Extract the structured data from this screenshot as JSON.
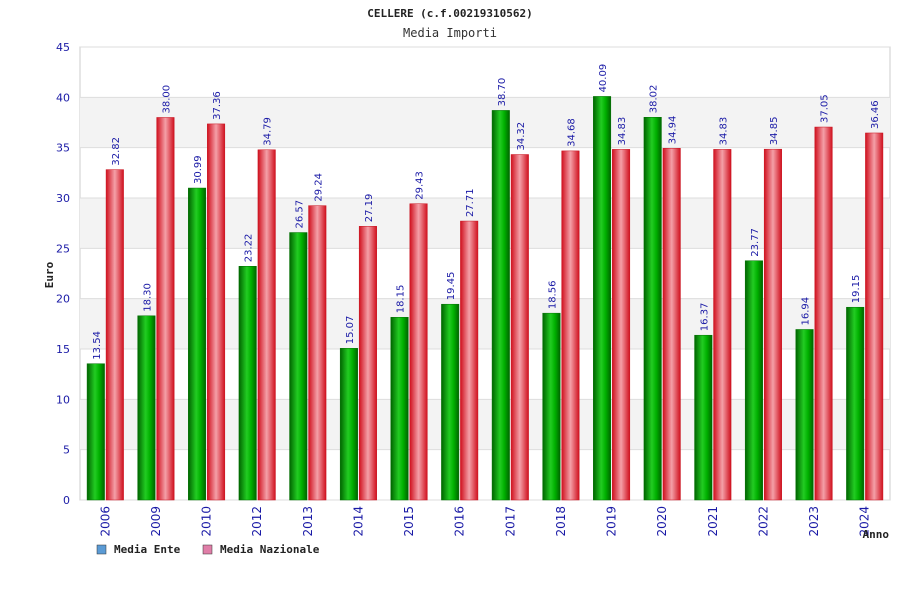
{
  "chart_data": {
    "type": "bar",
    "title": "CELLERE (c.f.00219310562)",
    "subtitle": "Media Importi",
    "ylabel": "Euro",
    "xlabel": "Anno",
    "ylim": [
      0,
      45
    ],
    "yticks": [
      0,
      5,
      10,
      15,
      20,
      25,
      30,
      35,
      40,
      45
    ],
    "categories": [
      "2006",
      "2009",
      "2010",
      "2012",
      "2013",
      "2014",
      "2015",
      "2016",
      "2017",
      "2018",
      "2019",
      "2020",
      "2021",
      "2022",
      "2023",
      "2024"
    ],
    "series": [
      {
        "name": "Media Ente",
        "legend_color": "#5b9bd5",
        "bar_color": "#00a000",
        "values": [
          13.54,
          18.3,
          30.99,
          23.22,
          26.57,
          15.07,
          18.15,
          19.45,
          38.7,
          18.56,
          40.09,
          38.02,
          16.37,
          23.77,
          16.94,
          19.15
        ]
      },
      {
        "name": "Media Nazionale",
        "legend_color": "#e07ea8",
        "bar_color": "#e01a2a",
        "values": [
          32.82,
          38.0,
          37.36,
          34.79,
          29.24,
          27.19,
          29.43,
          27.71,
          34.32,
          34.68,
          34.83,
          34.94,
          34.83,
          34.85,
          37.05,
          36.46
        ]
      }
    ],
    "legend": "bottom-left",
    "grid": true
  }
}
